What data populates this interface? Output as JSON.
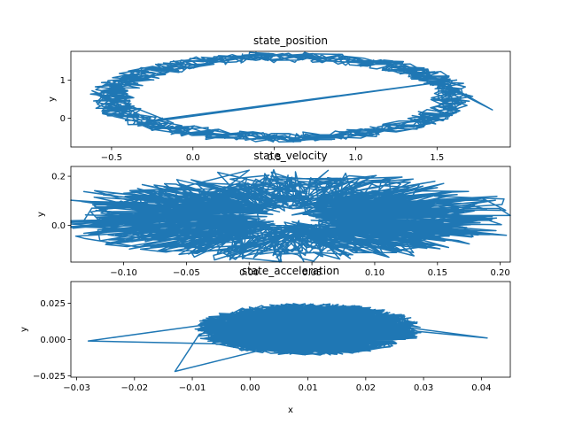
{
  "chart_data": [
    {
      "type": "line",
      "title": "state_position",
      "xlabel": "",
      "ylabel": "y",
      "xlim": [
        -0.75,
        1.95
      ],
      "ylim": [
        -0.75,
        1.75
      ],
      "xticks": [
        -0.5,
        0.0,
        0.5,
        1.0,
        1.5
      ],
      "xtick_labels": [
        "−0.5",
        "0.0",
        "0.5",
        "1.0",
        "1.5"
      ],
      "yticks": [
        0,
        1
      ],
      "ytick_labels": [
        "0",
        "1"
      ],
      "color": "#1f77b4",
      "shape": {
        "kind": "ring",
        "cx": 0.55,
        "cy": 0.55,
        "rx": 1.05,
        "ry": 1.05,
        "noise": 0.07,
        "n": 900,
        "seed": 11
      },
      "outliers": [
        [
          -0.62,
          0.72
        ],
        [
          1.84,
          0.22
        ],
        [
          1.62,
          1.0
        ]
      ]
    },
    {
      "type": "line",
      "title": "state_velocity",
      "xlabel": "",
      "ylabel": "y",
      "xlim": [
        -0.142,
        0.208
      ],
      "ylim": [
        -0.15,
        0.24
      ],
      "xticks": [
        -0.1,
        -0.05,
        0.0,
        0.05,
        0.1,
        0.15,
        0.2
      ],
      "xtick_labels": [
        "−0.10",
        "−0.05",
        "0.00",
        "0.05",
        "0.10",
        "0.15",
        "0.20"
      ],
      "yticks": [
        0.0,
        0.2
      ],
      "ytick_labels": [
        "0.0",
        "0.2"
      ],
      "color": "#1f77b4",
      "shape": {
        "kind": "ring",
        "cx": 0.03,
        "cy": 0.035,
        "rx": 0.105,
        "ry": 0.105,
        "noise": 0.045,
        "n": 1400,
        "seed": 23
      },
      "outliers": [
        [
          -0.13,
          0.01
        ],
        [
          0.197,
          0.03
        ],
        [
          0.0,
          0.225
        ]
      ]
    },
    {
      "type": "line",
      "title": "state_acceleration",
      "xlabel": "x",
      "ylabel": "y",
      "xlim": [
        -0.031,
        0.045
      ],
      "ylim": [
        -0.026,
        0.04
      ],
      "xticks": [
        -0.03,
        -0.02,
        -0.01,
        0.0,
        0.01,
        0.02,
        0.03,
        0.04
      ],
      "xtick_labels": [
        "−0.03",
        "−0.02",
        "−0.01",
        "0.00",
        "0.01",
        "0.02",
        "0.03",
        "0.04"
      ],
      "yticks": [
        -0.025,
        0.0,
        0.025
      ],
      "ytick_labels": [
        "−0.025",
        "0.000",
        "0.025"
      ],
      "color": "#1f77b4",
      "shape": {
        "kind": "blob",
        "cx": 0.01,
        "cy": 0.007,
        "rx": 0.02,
        "ry": 0.018,
        "noise": 0.0,
        "n": 1600,
        "seed": 37
      },
      "outliers": [
        [
          -0.028,
          -0.001
        ],
        [
          0.041,
          0.001
        ],
        [
          -0.013,
          -0.022
        ]
      ]
    }
  ]
}
